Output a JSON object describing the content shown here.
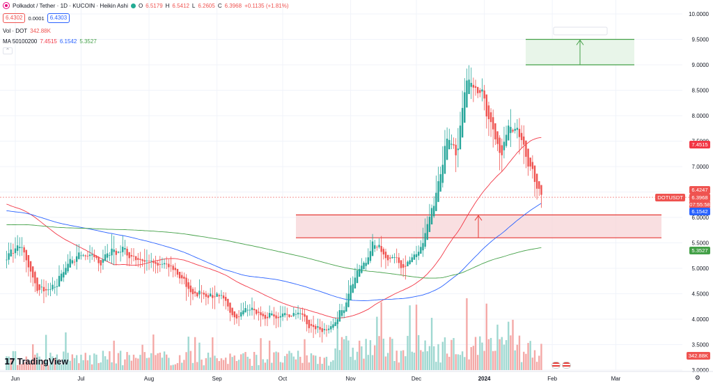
{
  "header": {
    "title": "Polkadot / Tether · 1D · KUCOIN · Heikin Ashi",
    "ohlc": [
      {
        "label": "O",
        "value": "6.5179"
      },
      {
        "label": "H",
        "value": "6.5412"
      },
      {
        "label": "L",
        "value": "6.2605"
      },
      {
        "label": "C",
        "value": "6.3968"
      }
    ],
    "change": "+0.1135 (+1.81%)",
    "sell_price": "6.4302",
    "spread": "0.0001",
    "buy_price": "6.4303"
  },
  "volume_indicator": {
    "label": "Vol · DOT",
    "value": "342.88K"
  },
  "ma_indicator": {
    "label": "MA 50100200",
    "values": [
      "7.4515",
      "6.1542",
      "5.3527"
    ]
  },
  "price_axis": {
    "ticks": [
      "10.0000",
      "9.5000",
      "9.0000",
      "8.5000",
      "8.0000",
      "7.5000",
      "7.0000",
      "6.5000",
      "6.0000",
      "5.5000",
      "5.0000",
      "4.5000",
      "4.0000",
      "3.5000",
      "3.0000"
    ],
    "labels": {
      "ma50": "7.4515",
      "high_label": "6.4247",
      "last_price": "6.3968",
      "countdown": "07:55:58",
      "ma100": "6.1542",
      "ma200": "5.3527",
      "volume": "342.88K"
    },
    "pair_tag": "DOTUSDT"
  },
  "time_axis": {
    "ticks": [
      "Jun",
      "Jul",
      "Aug",
      "Sep",
      "Oct",
      "Nov",
      "Dec",
      "2024",
      "Feb",
      "Mar"
    ]
  },
  "branding": "TradingView",
  "colors": {
    "up": "#26a69a",
    "down": "#ef5350",
    "ma50": "#f23645",
    "ma100": "#2962ff",
    "ma200": "#43a047",
    "zone_fill": "#f8d7da",
    "target_fill": "#e8f5e9"
  },
  "chart_data": {
    "type": "candlestick",
    "title": "Polkadot / Tether · 1D · KUCOIN · Heikin Ashi",
    "ylim": [
      3.0,
      10.0
    ],
    "x_ticks": [
      "Jun",
      "Jul",
      "Aug",
      "Sep",
      "Oct",
      "Nov",
      "Dec",
      "2024",
      "Feb",
      "Mar"
    ],
    "close_anchors": [
      [
        "2023-05-28",
        5.3
      ],
      [
        "2023-06-03",
        5.45
      ],
      [
        "2023-06-10",
        4.6
      ],
      [
        "2023-06-17",
        4.55
      ],
      [
        "2023-06-24",
        5.0
      ],
      [
        "2023-07-01",
        5.35
      ],
      [
        "2023-07-08",
        5.1
      ],
      [
        "2023-07-15",
        5.4
      ],
      [
        "2023-07-22",
        5.3
      ],
      [
        "2023-07-29",
        5.15
      ],
      [
        "2023-08-05",
        5.05
      ],
      [
        "2023-08-12",
        5.0
      ],
      [
        "2023-08-19",
        4.55
      ],
      [
        "2023-08-26",
        4.5
      ],
      [
        "2023-09-02",
        4.4
      ],
      [
        "2023-09-09",
        4.1
      ],
      [
        "2023-09-16",
        4.2
      ],
      [
        "2023-09-23",
        4.05
      ],
      [
        "2023-09-30",
        4.05
      ],
      [
        "2023-10-07",
        4.15
      ],
      [
        "2023-10-14",
        3.85
      ],
      [
        "2023-10-21",
        3.7
      ],
      [
        "2023-10-28",
        4.2
      ],
      [
        "2023-11-04",
        4.95
      ],
      [
        "2023-11-11",
        5.4
      ],
      [
        "2023-11-18",
        5.2
      ],
      [
        "2023-11-25",
        5.05
      ],
      [
        "2023-12-02",
        5.35
      ],
      [
        "2023-12-09",
        6.4
      ],
      [
        "2023-12-14",
        7.4
      ],
      [
        "2023-12-19",
        7.2
      ],
      [
        "2023-12-24",
        8.9
      ],
      [
        "2023-12-28",
        8.7
      ],
      [
        "2024-01-03",
        8.0
      ],
      [
        "2024-01-08",
        7.1
      ],
      [
        "2024-01-12",
        7.95
      ],
      [
        "2024-01-18",
        7.4
      ],
      [
        "2024-01-24",
        6.8
      ],
      [
        "2024-01-27",
        6.4
      ]
    ],
    "series": [
      {
        "name": "MA 50",
        "last": 7.4515
      },
      {
        "name": "MA 100",
        "last": 6.1542
      },
      {
        "name": "MA 200",
        "last": 5.3527
      }
    ],
    "volume_last": "342.88K",
    "last_price": 6.3968,
    "support_zone": {
      "from": 5.6,
      "to": 6.05
    },
    "target_zone": {
      "from": 9.0,
      "to": 9.5
    }
  }
}
